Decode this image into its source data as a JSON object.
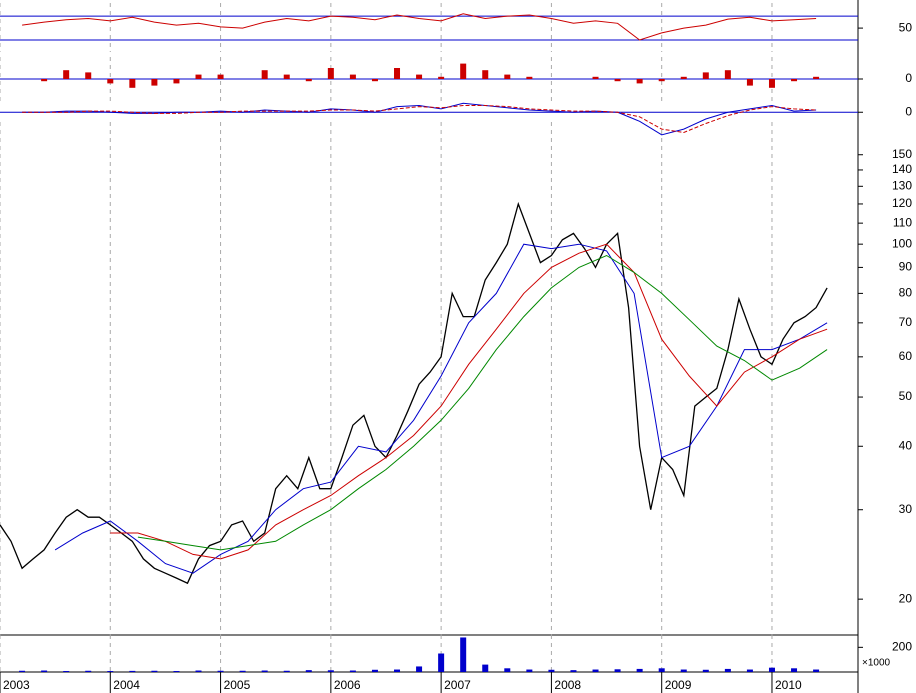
{
  "chart_data": [
    {
      "type": "line",
      "ylim": [
        10,
        92
      ],
      "yticks": [
        50
      ],
      "hlines": [
        30,
        70
      ],
      "series": [
        {
          "color": "#cc0000",
          "x": [
            2003.2,
            2003.4,
            2003.6,
            2003.8,
            2004.0,
            2004.2,
            2004.4,
            2004.6,
            2004.8,
            2005.0,
            2005.2,
            2005.4,
            2005.6,
            2005.8,
            2006.0,
            2006.2,
            2006.4,
            2006.6,
            2006.8,
            2007.0,
            2007.2,
            2007.4,
            2007.6,
            2007.8,
            2008.0,
            2008.2,
            2008.4,
            2008.6,
            2008.8,
            2009.0,
            2009.2,
            2009.4,
            2009.6,
            2009.8,
            2010.0,
            2010.2,
            2010.4
          ],
          "values": [
            55,
            60,
            64,
            66,
            62,
            68,
            60,
            55,
            58,
            52,
            50,
            60,
            66,
            62,
            70,
            68,
            64,
            72,
            66,
            62,
            74,
            66,
            70,
            72,
            66,
            58,
            62,
            58,
            30,
            42,
            50,
            55,
            65,
            68,
            62,
            64,
            66
          ]
        }
      ],
      "xlim": [
        2003,
        2010.78
      ]
    },
    {
      "type": "bar",
      "ylim": [
        -1,
        1
      ],
      "yticks": [
        0
      ],
      "hlines": [
        0
      ],
      "color": "#cc0000",
      "x": [
        2003.2,
        2003.4,
        2003.6,
        2003.8,
        2004.0,
        2004.2,
        2004.4,
        2004.6,
        2004.8,
        2005.0,
        2005.2,
        2005.4,
        2005.6,
        2005.8,
        2006.0,
        2006.2,
        2006.4,
        2006.6,
        2006.8,
        2007.0,
        2007.2,
        2007.4,
        2007.6,
        2007.8,
        2008.0,
        2008.2,
        2008.4,
        2008.6,
        2008.8,
        2009.0,
        2009.2,
        2009.4,
        2009.6,
        2009.8,
        2010.0,
        2010.2,
        2010.4
      ],
      "values": [
        0,
        -0.1,
        0.4,
        0.3,
        -0.2,
        -0.4,
        -0.3,
        -0.2,
        0.2,
        0.2,
        0,
        0.4,
        0.2,
        -0.1,
        0.5,
        0.2,
        -0.1,
        0.5,
        0.2,
        0.1,
        0.7,
        0.4,
        0.2,
        0.1,
        0,
        0,
        0.1,
        -0.1,
        -0.2,
        -0.1,
        0.1,
        0.3,
        0.4,
        -0.3,
        -0.4,
        -0.1,
        0.1
      ],
      "xlim": [
        2003,
        2010.78
      ]
    },
    {
      "type": "line",
      "ylim": [
        -3,
        1
      ],
      "yticks": [
        0
      ],
      "hlines": [
        0
      ],
      "series": [
        {
          "color": "#0000cc",
          "x": [
            2003.2,
            2003.4,
            2003.6,
            2003.8,
            2004.0,
            2004.2,
            2004.4,
            2004.6,
            2004.8,
            2005.0,
            2005.2,
            2005.4,
            2005.6,
            2005.8,
            2006.0,
            2006.2,
            2006.4,
            2006.6,
            2006.8,
            2007.0,
            2007.2,
            2007.4,
            2007.6,
            2007.8,
            2008.0,
            2008.2,
            2008.4,
            2008.6,
            2008.8,
            2009.0,
            2009.2,
            2009.4,
            2009.6,
            2009.8,
            2010.0,
            2010.2,
            2010.4
          ],
          "values": [
            0,
            0,
            0.1,
            0.1,
            0,
            -0.1,
            -0.1,
            0,
            0,
            0.1,
            0,
            0.2,
            0.1,
            0,
            0.3,
            0.2,
            0,
            0.5,
            0.6,
            0.3,
            0.8,
            0.6,
            0.4,
            0.2,
            0.1,
            0,
            0.1,
            0,
            -0.8,
            -2.0,
            -1.5,
            -0.6,
            0,
            0.3,
            0.6,
            0.1,
            0.2
          ]
        },
        {
          "color": "#cc0000",
          "dash": true,
          "x": [
            2003.2,
            2003.4,
            2003.6,
            2003.8,
            2004.0,
            2004.2,
            2004.4,
            2004.6,
            2004.8,
            2005.0,
            2005.2,
            2005.4,
            2005.6,
            2005.8,
            2006.0,
            2006.2,
            2006.4,
            2006.6,
            2006.8,
            2007.0,
            2007.2,
            2007.4,
            2007.6,
            2007.8,
            2008.0,
            2008.2,
            2008.4,
            2008.6,
            2008.8,
            2009.0,
            2009.2,
            2009.4,
            2009.6,
            2009.8,
            2010.0,
            2010.2,
            2010.4
          ],
          "values": [
            0,
            0,
            0,
            0.1,
            0.1,
            0,
            -0.1,
            -0.1,
            0,
            0,
            0.1,
            0.1,
            0.1,
            0.1,
            0.2,
            0.2,
            0.1,
            0.3,
            0.5,
            0.4,
            0.6,
            0.6,
            0.5,
            0.3,
            0.2,
            0.1,
            0.1,
            0,
            -0.4,
            -1.5,
            -1.8,
            -1.0,
            -0.3,
            0.2,
            0.5,
            0.3,
            0.2
          ]
        }
      ],
      "xlim": [
        2003,
        2010.78
      ]
    },
    {
      "type": "line",
      "log": true,
      "ylim": [
        17,
        174
      ],
      "yticks": [
        20,
        30,
        40,
        50,
        60,
        70,
        80,
        90,
        100,
        110,
        120,
        130,
        140,
        150
      ],
      "series": [
        {
          "color": "#000000",
          "x": [
            2003.0,
            2003.1,
            2003.2,
            2003.3,
            2003.4,
            2003.5,
            2003.6,
            2003.7,
            2003.8,
            2003.9,
            2004.0,
            2004.1,
            2004.2,
            2004.3,
            2004.4,
            2004.5,
            2004.6,
            2004.7,
            2004.8,
            2004.9,
            2005.0,
            2005.1,
            2005.2,
            2005.3,
            2005.4,
            2005.5,
            2005.6,
            2005.7,
            2005.8,
            2005.9,
            2006.0,
            2006.1,
            2006.2,
            2006.3,
            2006.4,
            2006.5,
            2006.6,
            2006.7,
            2006.8,
            2006.9,
            2007.0,
            2007.1,
            2007.2,
            2007.3,
            2007.4,
            2007.5,
            2007.6,
            2007.7,
            2007.8,
            2007.9,
            2008.0,
            2008.1,
            2008.2,
            2008.3,
            2008.4,
            2008.5,
            2008.6,
            2008.7,
            2008.8,
            2008.9,
            2009.0,
            2009.1,
            2009.2,
            2009.3,
            2009.4,
            2009.5,
            2009.6,
            2009.7,
            2009.8,
            2009.9,
            2010.0,
            2010.1,
            2010.2,
            2010.3,
            2010.4,
            2010.5
          ],
          "values": [
            28,
            26,
            23,
            24,
            25,
            27,
            29,
            30,
            29,
            29,
            28,
            27,
            26,
            24,
            23,
            22.5,
            22,
            21.5,
            24,
            25.5,
            26,
            28,
            28.5,
            26,
            27,
            33,
            35,
            33,
            38,
            33,
            33,
            38,
            44,
            46,
            40,
            38,
            42,
            47,
            53,
            56,
            60,
            80,
            72,
            72,
            85,
            92,
            100,
            120,
            105,
            92,
            95,
            102,
            105,
            98,
            90,
            100,
            105,
            75,
            40,
            30,
            38,
            36,
            32,
            48,
            50,
            52,
            62,
            78,
            68,
            60,
            58,
            65,
            70,
            72,
            75,
            82
          ]
        },
        {
          "color": "#0000cc",
          "x": [
            2003.5,
            2003.75,
            2004.0,
            2004.25,
            2004.5,
            2004.75,
            2005.0,
            2005.25,
            2005.5,
            2005.75,
            2006.0,
            2006.25,
            2006.5,
            2006.75,
            2007.0,
            2007.25,
            2007.5,
            2007.75,
            2008.0,
            2008.25,
            2008.5,
            2008.75,
            2009.0,
            2009.25,
            2009.5,
            2009.75,
            2010.0,
            2010.25,
            2010.5
          ],
          "values": [
            25,
            27,
            28.5,
            26,
            23.5,
            22.5,
            24.5,
            26,
            30,
            33,
            34,
            40,
            39,
            45,
            55,
            70,
            80,
            100,
            98,
            100,
            97,
            80,
            38,
            40,
            48,
            62,
            62,
            65,
            70
          ]
        },
        {
          "color": "#cc0000",
          "x": [
            2004.0,
            2004.25,
            2004.5,
            2004.75,
            2005.0,
            2005.25,
            2005.5,
            2005.75,
            2006.0,
            2006.25,
            2006.5,
            2006.75,
            2007.0,
            2007.25,
            2007.5,
            2007.75,
            2008.0,
            2008.25,
            2008.5,
            2008.75,
            2009.0,
            2009.25,
            2009.5,
            2009.75,
            2010.0,
            2010.25,
            2010.5
          ],
          "values": [
            27,
            27,
            26,
            24.5,
            24,
            25,
            28,
            30,
            32,
            35,
            38,
            42,
            48,
            58,
            68,
            80,
            90,
            96,
            100,
            88,
            65,
            55,
            48,
            56,
            60,
            65,
            68
          ]
        },
        {
          "color": "#008800",
          "x": [
            2004.25,
            2004.5,
            2004.75,
            2005.0,
            2005.25,
            2005.5,
            2005.75,
            2006.0,
            2006.25,
            2006.5,
            2006.75,
            2007.0,
            2007.25,
            2007.5,
            2007.75,
            2008.0,
            2008.25,
            2008.5,
            2008.75,
            2009.0,
            2009.25,
            2009.5,
            2009.75,
            2010.0,
            2010.25,
            2010.5
          ],
          "values": [
            26.5,
            26,
            25.5,
            25,
            25.5,
            26,
            28,
            30,
            33,
            36,
            40,
            45,
            52,
            62,
            72,
            82,
            90,
            95,
            88,
            80,
            71,
            63,
            59,
            54,
            57,
            62
          ]
        }
      ],
      "xlim": [
        2003,
        2010.78
      ]
    },
    {
      "type": "bar",
      "ylim": [
        0,
        300
      ],
      "yticks": [
        200
      ],
      "unit_label": "×1000",
      "color": "#0000cc",
      "x": [
        2003.2,
        2003.4,
        2003.6,
        2003.8,
        2004.0,
        2004.2,
        2004.4,
        2004.6,
        2004.8,
        2005.0,
        2005.2,
        2005.4,
        2005.6,
        2005.8,
        2006.0,
        2006.2,
        2006.4,
        2006.6,
        2006.8,
        2007.0,
        2007.2,
        2007.4,
        2007.6,
        2007.8,
        2008.0,
        2008.2,
        2008.4,
        2008.6,
        2008.8,
        2009.0,
        2009.2,
        2009.4,
        2009.6,
        2009.8,
        2010.0,
        2010.2,
        2010.4
      ],
      "values": [
        10,
        12,
        8,
        10,
        8,
        9,
        10,
        8,
        12,
        10,
        10,
        12,
        10,
        15,
        14,
        12,
        18,
        20,
        45,
        150,
        280,
        60,
        30,
        20,
        18,
        15,
        20,
        22,
        25,
        30,
        20,
        18,
        25,
        20,
        35,
        30,
        20
      ],
      "xlim": [
        2003,
        2010.78
      ],
      "xticks": [
        2003,
        2004,
        2005,
        2006,
        2007,
        2008,
        2009,
        2010
      ]
    }
  ]
}
